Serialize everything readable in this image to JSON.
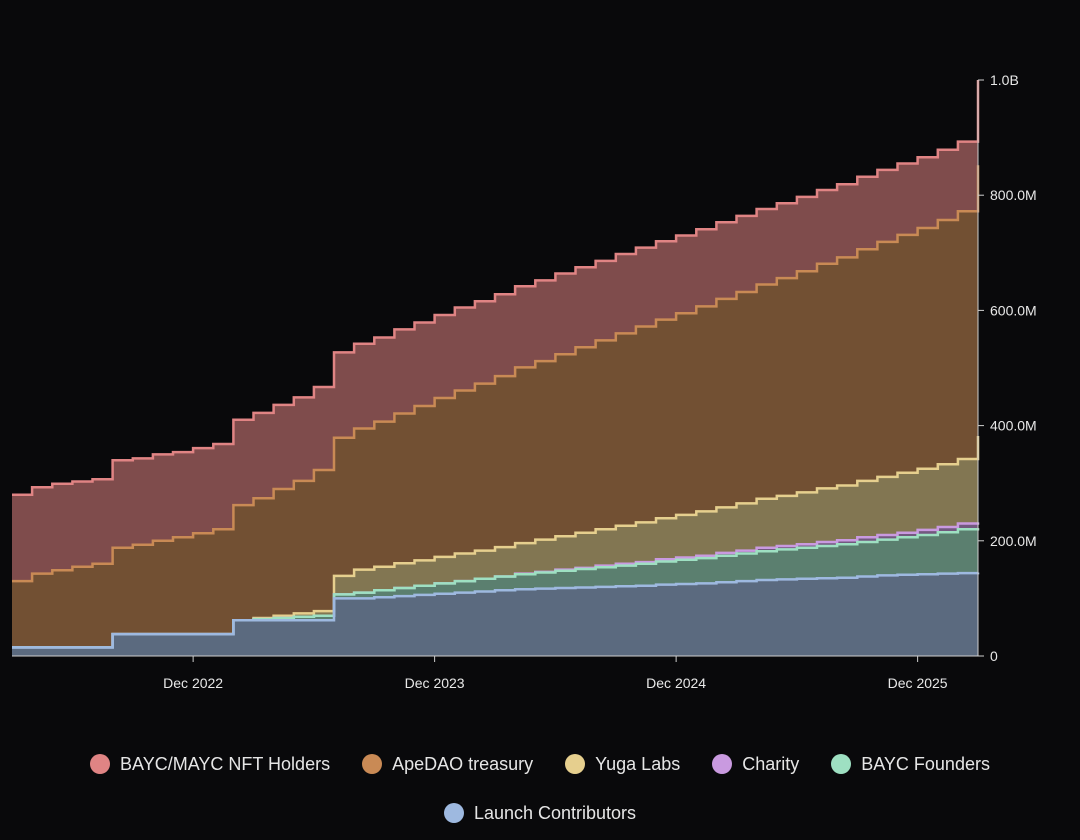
{
  "chart_data": {
    "type": "area",
    "stacked": true,
    "x_start": "2022-03",
    "x_end": "2026-03",
    "x_ticks": [
      "Dec 2022",
      "Dec 2023",
      "Dec 2024",
      "Dec 2025"
    ],
    "y_ticks": [
      "0",
      "200.0M",
      "400.0M",
      "600.0M",
      "800.0M",
      "1.0B"
    ],
    "ylim": [
      0,
      1000000000
    ],
    "grid": false,
    "legend_position": "bottom",
    "x": [
      "2022-03",
      "2022-04",
      "2022-05",
      "2022-06",
      "2022-07",
      "2022-08",
      "2022-09",
      "2022-10",
      "2022-11",
      "2022-12",
      "2023-01",
      "2023-02",
      "2023-03",
      "2023-04",
      "2023-05",
      "2023-06",
      "2023-07",
      "2023-08",
      "2023-09",
      "2023-10",
      "2023-11",
      "2023-12",
      "2024-01",
      "2024-02",
      "2024-03",
      "2024-04",
      "2024-05",
      "2024-06",
      "2024-07",
      "2024-08",
      "2024-09",
      "2024-10",
      "2024-11",
      "2024-12",
      "2025-01",
      "2025-02",
      "2025-03",
      "2025-04",
      "2025-05",
      "2025-06",
      "2025-07",
      "2025-08",
      "2025-09",
      "2025-10",
      "2025-11",
      "2025-12",
      "2026-01",
      "2026-02",
      "2026-03"
    ],
    "series": [
      {
        "name": "Launch Contributors",
        "color": "#9eb9e0",
        "values": [
          15000000,
          15000000,
          15000000,
          15000000,
          15000000,
          38000000,
          38000000,
          38000000,
          38000000,
          38000000,
          38000000,
          62000000,
          62000000,
          62000000,
          62000000,
          62000000,
          100000000,
          100000000,
          102000000,
          104000000,
          106000000,
          108000000,
          110000000,
          112000000,
          114000000,
          116000000,
          117000000,
          118000000,
          119000000,
          120000000,
          121000000,
          122000000,
          124000000,
          125000000,
          126000000,
          128000000,
          130000000,
          132000000,
          133000000,
          134000000,
          135000000,
          136000000,
          138000000,
          140000000,
          141000000,
          142000000,
          143000000,
          144000000,
          145000000
        ]
      },
      {
        "name": "BAYC Founders",
        "color": "#9ee0c2",
        "values": [
          0,
          0,
          0,
          0,
          0,
          0,
          0,
          0,
          0,
          0,
          0,
          0,
          2000000,
          4000000,
          6000000,
          8000000,
          7000000,
          10000000,
          12000000,
          14000000,
          16000000,
          18000000,
          20000000,
          22000000,
          24000000,
          26000000,
          28000000,
          30000000,
          32000000,
          34000000,
          36000000,
          38000000,
          40000000,
          42000000,
          44000000,
          46000000,
          48000000,
          50000000,
          52000000,
          54000000,
          56000000,
          58000000,
          60000000,
          62000000,
          65000000,
          68000000,
          72000000,
          76000000,
          77000000
        ]
      },
      {
        "name": "Charity",
        "color": "#c99ae0",
        "values": [
          0,
          0,
          0,
          0,
          0,
          0,
          0,
          0,
          0,
          0,
          0,
          0,
          0,
          0,
          0,
          0,
          0,
          0,
          0,
          0,
          0,
          0,
          0,
          0,
          0,
          1000000,
          1000000,
          2000000,
          2000000,
          3000000,
          3000000,
          3000000,
          4000000,
          4000000,
          4000000,
          5000000,
          5000000,
          6000000,
          6000000,
          6000000,
          7000000,
          7000000,
          8000000,
          8000000,
          8000000,
          9000000,
          9000000,
          10000000,
          10000000
        ]
      },
      {
        "name": "Yuga Labs",
        "color": "#e6cf8e",
        "values": [
          0,
          0,
          0,
          0,
          0,
          0,
          0,
          0,
          0,
          0,
          0,
          0,
          2000000,
          4000000,
          6000000,
          8000000,
          32000000,
          40000000,
          41000000,
          43000000,
          44000000,
          46000000,
          48000000,
          49000000,
          51000000,
          53000000,
          56000000,
          58000000,
          61000000,
          63000000,
          66000000,
          69000000,
          71000000,
          74000000,
          77000000,
          79000000,
          82000000,
          85000000,
          87000000,
          90000000,
          93000000,
          95000000,
          98000000,
          101000000,
          104000000,
          106000000,
          109000000,
          112000000,
          150000000
        ]
      },
      {
        "name": "ApeDAO treasury",
        "color": "#c98a55",
        "values": [
          115000000,
          128000000,
          134000000,
          140000000,
          145000000,
          150000000,
          155000000,
          162000000,
          168000000,
          175000000,
          182000000,
          200000000,
          208000000,
          220000000,
          230000000,
          245000000,
          240000000,
          245000000,
          252000000,
          260000000,
          268000000,
          276000000,
          283000000,
          290000000,
          297000000,
          305000000,
          310000000,
          316000000,
          322000000,
          328000000,
          334000000,
          340000000,
          345000000,
          350000000,
          356000000,
          362000000,
          367000000,
          372000000,
          378000000,
          384000000,
          390000000,
          396000000,
          402000000,
          408000000,
          413000000,
          418000000,
          424000000,
          430000000,
          470000000
        ]
      },
      {
        "name": "BAYC/MAYC NFT Holders",
        "color": "#e08484",
        "values": [
          150000000,
          150000000,
          150000000,
          148000000,
          147000000,
          152000000,
          150000000,
          150000000,
          148000000,
          148000000,
          148000000,
          148000000,
          148000000,
          146000000,
          145000000,
          144000000,
          148000000,
          147000000,
          146000000,
          146000000,
          145000000,
          144000000,
          144000000,
          143000000,
          142000000,
          141000000,
          140000000,
          140000000,
          139000000,
          138000000,
          138000000,
          137000000,
          136000000,
          135000000,
          134000000,
          133000000,
          132000000,
          131000000,
          130000000,
          129000000,
          128000000,
          127000000,
          126000000,
          125000000,
          124000000,
          123000000,
          122000000,
          121000000,
          148000000
        ]
      }
    ]
  },
  "legend": {
    "rows": [
      [
        {
          "label": "BAYC/MAYC NFT Holders",
          "color": "#e08484"
        },
        {
          "label": "ApeDAO treasury",
          "color": "#c98a55"
        },
        {
          "label": "Yuga Labs",
          "color": "#e6cf8e"
        },
        {
          "label": "Charity",
          "color": "#c99ae0"
        },
        {
          "label": "BAYC Founders",
          "color": "#9ee0c2"
        }
      ],
      [
        {
          "label": "Launch Contributors",
          "color": "#9eb9e0"
        }
      ]
    ]
  },
  "theme": {
    "background": "#09090b",
    "axis": "#cfcfcf",
    "text": "#e8e8e8"
  }
}
